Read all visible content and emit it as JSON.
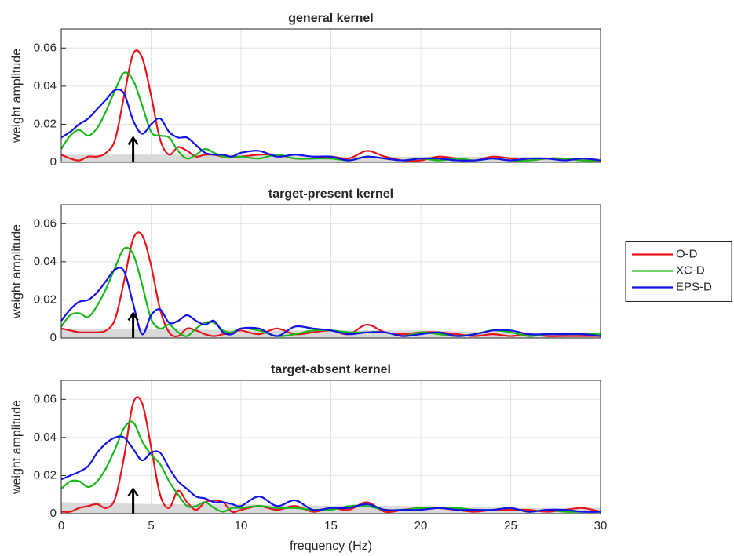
{
  "chart_data": [
    {
      "type": "line",
      "title": "general kernel",
      "ylabel": "weight amplitude",
      "x": [
        0,
        0.5,
        1,
        1.5,
        2,
        2.5,
        3,
        3.5,
        4,
        4.5,
        5,
        5.5,
        6,
        6.5,
        7,
        7.5,
        8,
        8.5,
        9,
        9.5,
        10,
        11,
        12,
        13,
        14,
        15,
        16,
        17,
        18,
        19,
        20,
        21,
        22,
        23,
        24,
        25,
        26,
        27,
        28,
        29,
        30
      ],
      "series": [
        {
          "color": "#e8141b",
          "values": [
            0.004,
            0.002,
            0.001,
            0.003,
            0.003,
            0.005,
            0.012,
            0.035,
            0.057,
            0.055,
            0.035,
            0.012,
            0.004,
            0.008,
            0.006,
            0.003,
            0.004,
            0.004,
            0.003,
            0.003,
            0.003,
            0.004,
            0.004,
            0.002,
            0.002,
            0.003,
            0.002,
            0.006,
            0.003,
            0.001,
            0.001,
            0.003,
            0.002,
            0.001,
            0.003,
            0.002,
            0.001,
            0.002,
            0.002,
            0.001,
            0.001
          ]
        },
        {
          "color": "#17b817",
          "values": [
            0.007,
            0.014,
            0.017,
            0.014,
            0.018,
            0.027,
            0.038,
            0.047,
            0.043,
            0.03,
            0.016,
            0.014,
            0.013,
            0.006,
            0.002,
            0.004,
            0.007,
            0.005,
            0.003,
            0.003,
            0.003,
            0.002,
            0.004,
            0.002,
            0.002,
            0.002,
            0.001,
            0.003,
            0.002,
            0.001,
            0.002,
            0.001,
            0.002,
            0.001,
            0.002,
            0.001,
            0.001,
            0.002,
            0.002,
            0.001,
            0.001
          ]
        },
        {
          "color": "#1212e6",
          "values": [
            0.013,
            0.016,
            0.02,
            0.023,
            0.028,
            0.033,
            0.038,
            0.036,
            0.022,
            0.015,
            0.02,
            0.023,
            0.016,
            0.013,
            0.013,
            0.009,
            0.005,
            0.004,
            0.004,
            0.003,
            0.005,
            0.006,
            0.003,
            0.004,
            0.003,
            0.003,
            0.001,
            0.003,
            0.002,
            0.001,
            0.002,
            0.002,
            0.001,
            0.001,
            0.002,
            0.001,
            0.002,
            0.002,
            0.001,
            0.002,
            0.001
          ]
        }
      ],
      "shade": {
        "color": "#d9d9d9",
        "x": [
          0,
          5,
          10,
          15,
          20,
          25,
          30
        ],
        "values": [
          0.004,
          0.004,
          0.004,
          0.003,
          0.003,
          0.003,
          0.002
        ]
      },
      "arrow": {
        "x": 4,
        "y": [
          0,
          0.013
        ]
      },
      "xlim": [
        0,
        30
      ],
      "ylim": [
        0,
        0.07
      ],
      "xticks": [
        0,
        5,
        10,
        15,
        20,
        25,
        30
      ],
      "yticks": [
        0,
        0.02,
        0.04,
        0.06
      ],
      "grid": true
    },
    {
      "type": "line",
      "title": "target-present kernel",
      "ylabel": "weight amplitude",
      "x": [
        0,
        0.5,
        1,
        1.5,
        2,
        2.5,
        3,
        3.5,
        4,
        4.5,
        5,
        5.5,
        6,
        6.5,
        7,
        7.5,
        8,
        8.5,
        9,
        9.5,
        10,
        11,
        12,
        13,
        14,
        15,
        16,
        17,
        18,
        19,
        20,
        21,
        22,
        23,
        24,
        25,
        26,
        27,
        28,
        29,
        30
      ],
      "series": [
        {
          "name": "O-D",
          "color": "#e8141b",
          "values": [
            0.005,
            0.004,
            0.003,
            0.003,
            0.003,
            0.004,
            0.01,
            0.03,
            0.052,
            0.054,
            0.038,
            0.015,
            0.003,
            0.001,
            0.005,
            0.004,
            0.002,
            0.001,
            0.002,
            0.003,
            0.004,
            0.002,
            0.005,
            0.002,
            0.003,
            0.004,
            0.002,
            0.007,
            0.003,
            0.002,
            0.003,
            0.003,
            0.002,
            0.001,
            0.002,
            0.001,
            0.002,
            0.001,
            0.001,
            0.001,
            0.001
          ]
        },
        {
          "name": "XC-D",
          "color": "#17b817",
          "values": [
            0.006,
            0.012,
            0.013,
            0.011,
            0.017,
            0.026,
            0.037,
            0.047,
            0.044,
            0.028,
            0.01,
            0.005,
            0.007,
            0.003,
            0.001,
            0.005,
            0.008,
            0.008,
            0.004,
            0.003,
            0.005,
            0.004,
            0.001,
            0.002,
            0.004,
            0.004,
            0.003,
            0.003,
            0.003,
            0.001,
            0.003,
            0.002,
            0.001,
            0.002,
            0.004,
            0.003,
            0.001,
            0.002,
            0.002,
            0.002,
            0.002
          ]
        },
        {
          "name": "EPS-D",
          "color": "#1212e6",
          "values": [
            0.009,
            0.015,
            0.019,
            0.02,
            0.024,
            0.03,
            0.036,
            0.035,
            0.018,
            0.002,
            0.012,
            0.015,
            0.008,
            0.009,
            0.012,
            0.009,
            0.007,
            0.009,
            0.003,
            0.002,
            0.005,
            0.005,
            0.001,
            0.006,
            0.005,
            0.004,
            0.002,
            0.003,
            0.003,
            0.001,
            0.002,
            0.003,
            0.001,
            0.002,
            0.004,
            0.004,
            0.002,
            0.002,
            0.002,
            0.002,
            0.001
          ]
        }
      ],
      "legend": "right",
      "shade": {
        "color": "#d9d9d9",
        "x": [
          0,
          5,
          10,
          15,
          20,
          25,
          30
        ],
        "values": [
          0.005,
          0.005,
          0.004,
          0.004,
          0.004,
          0.003,
          0.003
        ]
      },
      "arrow": {
        "x": 4,
        "y": [
          0,
          0.013
        ]
      },
      "xlim": [
        0,
        30
      ],
      "ylim": [
        0,
        0.07
      ],
      "xticks": [
        0,
        5,
        10,
        15,
        20,
        25,
        30
      ],
      "yticks": [
        0,
        0.02,
        0.04,
        0.06
      ],
      "grid": true
    },
    {
      "type": "line",
      "title": "target-absent kernel",
      "ylabel": "weight amplitude",
      "xlabel": "frequency (Hz)",
      "x": [
        0,
        0.5,
        1,
        1.5,
        2,
        2.5,
        3,
        3.5,
        4,
        4.5,
        5,
        5.5,
        6,
        6.5,
        7,
        7.5,
        8,
        8.5,
        9,
        9.5,
        10,
        11,
        12,
        13,
        14,
        15,
        16,
        17,
        18,
        19,
        20,
        21,
        22,
        23,
        24,
        25,
        26,
        27,
        28,
        29,
        30
      ],
      "series": [
        {
          "color": "#e8141b",
          "values": [
            0.001,
            0.001,
            0.003,
            0.004,
            0.005,
            0.003,
            0.008,
            0.03,
            0.058,
            0.058,
            0.035,
            0.01,
            0.003,
            0.012,
            0.006,
            0.002,
            0.006,
            0.007,
            0.006,
            0.001,
            0.002,
            0.004,
            0.002,
            0.004,
            0.001,
            0.003,
            0.002,
            0.006,
            0.001,
            0.002,
            0.003,
            0.003,
            0.002,
            0.001,
            0.002,
            0.002,
            0.002,
            0.001,
            0.002,
            0.003,
            0.001
          ]
        },
        {
          "color": "#17b817",
          "values": [
            0.013,
            0.017,
            0.017,
            0.014,
            0.017,
            0.024,
            0.034,
            0.045,
            0.048,
            0.038,
            0.031,
            0.026,
            0.017,
            0.01,
            0.004,
            0.004,
            0.006,
            0.003,
            0.001,
            0.003,
            0.003,
            0.004,
            0.003,
            0.003,
            0.002,
            0.002,
            0.004,
            0.004,
            0.002,
            0.002,
            0.003,
            0.003,
            0.003,
            0.002,
            0.002,
            0.003,
            0.001,
            0.002,
            0.001,
            0.001,
            0.001
          ]
        },
        {
          "color": "#1212e6",
          "values": [
            0.018,
            0.02,
            0.022,
            0.025,
            0.032,
            0.037,
            0.04,
            0.04,
            0.034,
            0.028,
            0.032,
            0.032,
            0.024,
            0.017,
            0.013,
            0.009,
            0.008,
            0.006,
            0.006,
            0.005,
            0.004,
            0.009,
            0.004,
            0.007,
            0.002,
            0.003,
            0.003,
            0.005,
            0.002,
            0.002,
            0.002,
            0.003,
            0.002,
            0.002,
            0.002,
            0.003,
            0.001,
            0.002,
            0.002,
            0.001,
            0.001
          ]
        }
      ],
      "shade": {
        "color": "#d9d9d9",
        "x": [
          0,
          5,
          10,
          15,
          20,
          25,
          30
        ],
        "values": [
          0.006,
          0.005,
          0.005,
          0.004,
          0.004,
          0.003,
          0.003
        ]
      },
      "arrow": {
        "x": 4,
        "y": [
          0,
          0.013
        ]
      },
      "xlim": [
        0,
        30
      ],
      "ylim": [
        0,
        0.07
      ],
      "xticks": [
        0,
        5,
        10,
        15,
        20,
        25,
        30
      ],
      "yticks": [
        0,
        0.02,
        0.04,
        0.06
      ],
      "grid": true
    }
  ]
}
